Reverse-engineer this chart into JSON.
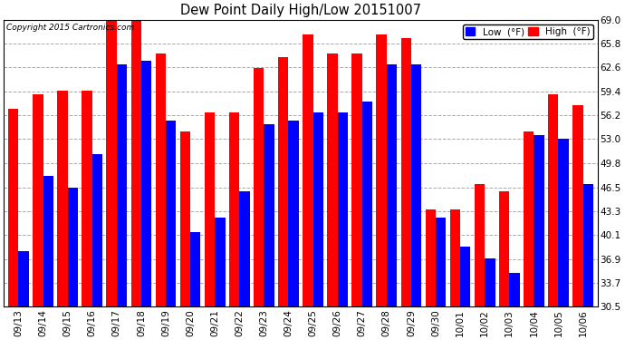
{
  "title": "Dew Point Daily High/Low 20151007",
  "copyright": "Copyright 2015 Cartronics.com",
  "dates": [
    "09/13",
    "09/14",
    "09/15",
    "09/16",
    "09/17",
    "09/18",
    "09/19",
    "09/20",
    "09/21",
    "09/22",
    "09/23",
    "09/24",
    "09/25",
    "09/26",
    "09/27",
    "09/28",
    "09/29",
    "09/30",
    "10/01",
    "10/02",
    "10/03",
    "10/04",
    "10/05",
    "10/06"
  ],
  "high": [
    57.0,
    59.0,
    59.5,
    59.5,
    69.0,
    69.0,
    64.5,
    54.0,
    56.5,
    56.5,
    62.5,
    64.0,
    67.0,
    64.5,
    64.5,
    67.0,
    66.5,
    43.5,
    43.5,
    47.0,
    46.0,
    54.0,
    59.0,
    57.5
  ],
  "low": [
    38.0,
    48.0,
    46.5,
    51.0,
    63.0,
    63.5,
    55.5,
    40.5,
    42.5,
    46.0,
    55.0,
    55.5,
    56.5,
    56.5,
    58.0,
    63.0,
    63.0,
    42.5,
    38.5,
    37.0,
    35.0,
    53.5,
    53.0,
    47.0
  ],
  "bar_color_high": "#ff0000",
  "bar_color_low": "#0000ff",
  "background_color": "#ffffff",
  "plot_bg_color": "#ffffff",
  "grid_color": "#aaaaaa",
  "ymin": 30.5,
  "ymax": 69.0,
  "yticks": [
    30.5,
    33.7,
    36.9,
    40.1,
    43.3,
    46.5,
    49.8,
    53.0,
    56.2,
    59.4,
    62.6,
    65.8,
    69.0
  ],
  "bar_width": 0.42,
  "legend_low_label": "Low  (°F)",
  "legend_high_label": "High  (°F)"
}
